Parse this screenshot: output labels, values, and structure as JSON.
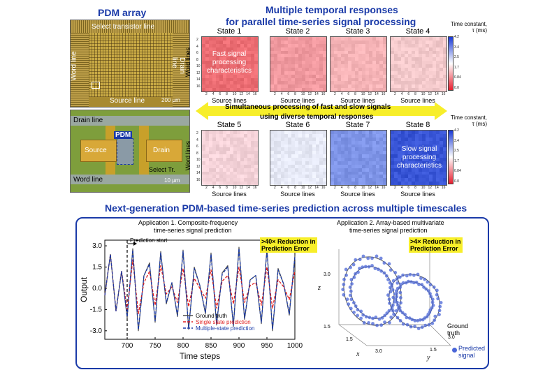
{
  "top_left": {
    "title": "PDM array",
    "micro1": {
      "select_line": "Select transistor line",
      "word_line": "Word line",
      "drain_line": "Drain line",
      "source_line": "Source line",
      "scale": "200 μm"
    },
    "micro2": {
      "drain_line": "Drain line",
      "pdm": "PDM",
      "source": "Source",
      "drain": "Drain",
      "select_tr": "Select Tr.",
      "word_line": "Word line",
      "scale": "10 μm"
    }
  },
  "top_right": {
    "title_line1": "Multiple temporal responses",
    "title_line2": "for parallel time-series signal processing",
    "states": [
      "State 1",
      "State 2",
      "State 3",
      "State 4",
      "State 5",
      "State 6",
      "State 7",
      "State 8"
    ],
    "state_colors": [
      "#ec6d73",
      "#f19aa0",
      "#f5b3b6",
      "#f3c9cb",
      "#f4d2d8",
      "#e6e9f6",
      "#7f95e8",
      "#3855d6"
    ],
    "x_ticks": [
      "2",
      "4",
      "6",
      "8",
      "10",
      "12",
      "14",
      "16"
    ],
    "y_ticks": [
      "2",
      "4",
      "6",
      "8",
      "10",
      "12",
      "14",
      "16"
    ],
    "xlabel": "Source lines",
    "ylabel": "Word lines",
    "fast_text": "Fast signal processing characteristics",
    "slow_text": "Slow signal processing characteristics",
    "arrow_text1": "Simultaneous processing of fast and slow signals",
    "arrow_text2": "using diverse temporal responses",
    "colorbar_title1": "Time constant,",
    "colorbar_title2": "τ (ms)",
    "colorbar_ticks": [
      "4.2",
      "3.4",
      "2.5",
      "1.7",
      "0.84",
      "0.0"
    ]
  },
  "bottom": {
    "title": "Next-generation PDM-based time-series prediction across multiple timescales",
    "app1": {
      "title1": "Application 1. Composite-frequency",
      "title2": "time-series signal prediction",
      "prediction_start": "Prediction start",
      "callout1": ">40× Reduction in",
      "callout2": "Prediction Error",
      "ylabel": "Output",
      "xlabel": "Time steps",
      "legend": [
        "Ground truth",
        "Single state prediction",
        "Multiple-state prediction"
      ],
      "legend_colors": [
        "#444444",
        "#e02020",
        "#1a3aa8"
      ]
    },
    "app2": {
      "title1": "Application 2. Array-based multivariate",
      "title2": "time-series signal prediction",
      "callout1": ">4× Reduction in",
      "callout2": "Prediction Error",
      "ground_truth1": "Ground",
      "ground_truth2": "truth",
      "predicted1": "Predicted",
      "predicted2": "signal",
      "z_label": "z",
      "x_label": "x",
      "y_label": "y",
      "z_ticks": [
        "3.0",
        "1.5"
      ],
      "x_ticks": [
        "1.5",
        "3.0"
      ],
      "y_ticks": [
        "1.5",
        "3.0"
      ]
    }
  },
  "chart_data": {
    "type": "line",
    "xlabel": "Time steps",
    "ylabel": "Output",
    "xlim": [
      660,
      1000
    ],
    "ylim": [
      -3.6,
      3.4
    ],
    "x_ticks": [
      700,
      750,
      800,
      850,
      900,
      950,
      1000
    ],
    "y_ticks": [
      -3.0,
      -1.5,
      0.0,
      1.5,
      3.0
    ],
    "prediction_start_x": 700,
    "series": [
      {
        "name": "Ground truth",
        "color": "#444444",
        "x": [
          660,
          670,
          680,
          690,
          700,
          710,
          720,
          730,
          740,
          750,
          760,
          770,
          780,
          790,
          800,
          810,
          820,
          830,
          840,
          850,
          860,
          870,
          880,
          890,
          900,
          910,
          920,
          930,
          940,
          950,
          960,
          970,
          980,
          990,
          1000
        ],
        "values": [
          -0.5,
          2.4,
          -1.6,
          1.2,
          -2.1,
          2.8,
          -3.0,
          0.9,
          1.8,
          -2.4,
          2.6,
          -1.1,
          0.4,
          -2.0,
          2.7,
          -2.9,
          1.5,
          0.2,
          -1.8,
          2.5,
          -2.6,
          1.1,
          1.6,
          -2.7,
          2.9,
          -2.2,
          0.6,
          0.9,
          -2.5,
          2.8,
          -3.0,
          1.4,
          0.3,
          -1.9,
          2.3
        ]
      },
      {
        "name": "Single state prediction",
        "color": "#e02020",
        "x": [
          660,
          670,
          680,
          690,
          700,
          710,
          720,
          730,
          740,
          750,
          760,
          770,
          780,
          790,
          800,
          810,
          820,
          830,
          840,
          850,
          860,
          870,
          880,
          890,
          900,
          910,
          920,
          930,
          940,
          950,
          960,
          970,
          980,
          990,
          1000
        ],
        "values": [
          -0.5,
          2.4,
          -1.6,
          1.2,
          -1.5,
          2.0,
          -1.8,
          0.4,
          1.2,
          -1.2,
          1.6,
          -0.4,
          0.1,
          -1.0,
          1.4,
          -1.3,
          0.7,
          0.0,
          -0.7,
          1.3,
          -1.4,
          0.5,
          0.9,
          -1.1,
          1.5,
          -1.0,
          0.2,
          0.4,
          -1.2,
          1.5,
          -1.4,
          0.6,
          0.1,
          -0.8,
          1.2
        ]
      },
      {
        "name": "Multiple-state prediction",
        "color": "#1a3aa8",
        "x": [
          660,
          670,
          680,
          690,
          700,
          710,
          720,
          730,
          740,
          750,
          760,
          770,
          780,
          790,
          800,
          810,
          820,
          830,
          840,
          850,
          860,
          870,
          880,
          890,
          900,
          910,
          920,
          930,
          940,
          950,
          960,
          970,
          980,
          990,
          1000
        ],
        "values": [
          -0.5,
          2.4,
          -1.6,
          1.2,
          -2.0,
          2.7,
          -2.9,
          0.9,
          1.7,
          -2.3,
          2.5,
          -1.0,
          0.4,
          -1.9,
          2.6,
          -2.8,
          1.4,
          0.2,
          -1.7,
          2.4,
          -2.5,
          1.0,
          1.5,
          -2.6,
          2.8,
          -2.1,
          0.6,
          0.9,
          -2.4,
          2.7,
          -2.9,
          1.3,
          0.3,
          -1.8,
          2.2
        ]
      }
    ]
  }
}
